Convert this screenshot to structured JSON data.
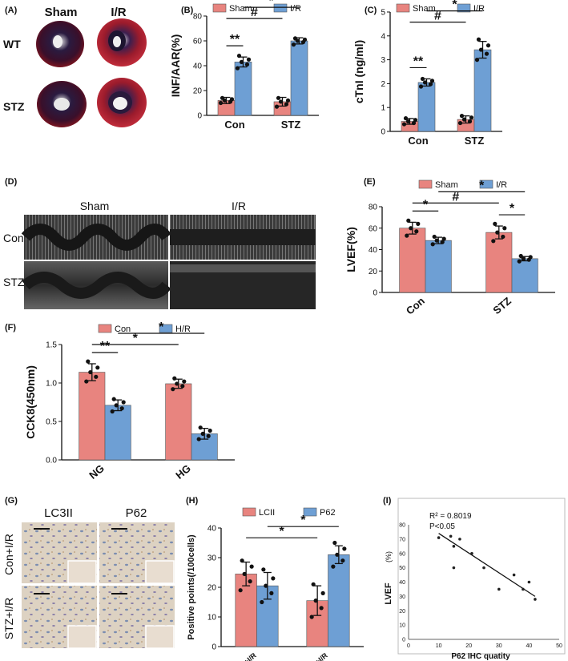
{
  "colors": {
    "red": "#e8847f",
    "blue": "#6e9fd4",
    "axis": "#111111"
  },
  "panels": {
    "A": {
      "label": "(A)",
      "col_headers": [
        "Sham",
        "I/R"
      ],
      "row_headers": [
        "WT",
        "STZ"
      ]
    },
    "D": {
      "label": "(D)",
      "col_headers": [
        "Sham",
        "I/R"
      ],
      "row_headers": [
        "Con",
        "STZ"
      ]
    },
    "G": {
      "label": "(G)",
      "col_headers": [
        "LC3II",
        "P62"
      ],
      "row_headers": [
        "Con+I/R",
        "STZ+I/R"
      ]
    }
  },
  "chart_data": [
    {
      "panel": "(B)",
      "type": "bar",
      "categories": [
        "Con",
        "STZ"
      ],
      "series": [
        {
          "name": "Sham",
          "values": [
            12,
            11
          ],
          "errors": [
            2.5,
            3.5
          ],
          "points": [
            [
              10,
              11,
              12,
              13,
              14
            ],
            [
              7,
              9,
              11,
              12,
              14
            ]
          ]
        },
        {
          "name": "I/R",
          "values": [
            43,
            60
          ],
          "errors": [
            4,
            2.5
          ],
          "points": [
            [
              38,
              41,
              43,
              45,
              48
            ],
            [
              57,
              59,
              60,
              61,
              62
            ]
          ]
        }
      ],
      "ylabel": "INF/AAR(%)",
      "ylim": [
        0,
        80
      ],
      "yticks": [
        0,
        20,
        40,
        60,
        80
      ],
      "legend": "top",
      "annotations": [
        {
          "text": "**",
          "from": [
            0,
            0
          ],
          "to": [
            0,
            1
          ]
        },
        {
          "text": "#",
          "from": [
            0,
            0
          ],
          "to": [
            1,
            0
          ]
        },
        {
          "text": "*",
          "from": [
            0,
            1
          ],
          "to": [
            1,
            1
          ]
        }
      ]
    },
    {
      "panel": "(C)",
      "type": "bar",
      "categories": [
        "Con",
        "STZ"
      ],
      "series": [
        {
          "name": "Sham",
          "values": [
            0.42,
            0.5
          ],
          "errors": [
            0.12,
            0.15
          ],
          "points": [
            [
              0.3,
              0.35,
              0.42,
              0.48,
              0.55
            ],
            [
              0.35,
              0.42,
              0.5,
              0.58,
              0.65
            ]
          ]
        },
        {
          "name": "I/R",
          "values": [
            2.05,
            3.42
          ],
          "errors": [
            0.15,
            0.35
          ],
          "points": [
            [
              1.88,
              1.98,
              2.05,
              2.12,
              2.2
            ],
            [
              3.0,
              3.25,
              3.42,
              3.6,
              3.85
            ]
          ]
        }
      ],
      "ylabel": "cTnI (ng/ml)",
      "ylim": [
        0,
        5
      ],
      "yticks": [
        0,
        1,
        2,
        3,
        4,
        5
      ],
      "legend": "top",
      "annotations": [
        {
          "text": "**",
          "from": [
            0,
            0
          ],
          "to": [
            0,
            1
          ]
        },
        {
          "text": "#",
          "from": [
            0,
            0
          ],
          "to": [
            1,
            0
          ]
        },
        {
          "text": "*",
          "from": [
            0,
            1
          ],
          "to": [
            1,
            1
          ]
        }
      ]
    },
    {
      "panel": "(E)",
      "type": "bar",
      "categories": [
        "Con",
        "STZ"
      ],
      "series": [
        {
          "name": "Sham",
          "values": [
            60,
            56
          ],
          "errors": [
            5.5,
            6
          ],
          "points": [
            [
              53,
              57,
              60,
              64,
              67
            ],
            [
              48,
              52,
              56,
              60,
              64
            ]
          ]
        },
        {
          "name": "I/R",
          "values": [
            48.5,
            31.5
          ],
          "errors": [
            3,
            2
          ],
          "points": [
            [
              45,
              47,
              48.5,
              50,
              52
            ],
            [
              29,
              30.5,
              31.5,
              33,
              34
            ]
          ]
        }
      ],
      "ylabel": "LVEF(%)",
      "ylim": [
        0,
        80
      ],
      "yticks": [
        0,
        20,
        40,
        60,
        80
      ],
      "legend": "top",
      "annotations": [
        {
          "text": "*",
          "from": [
            0,
            0
          ],
          "to": [
            0,
            1
          ]
        },
        {
          "text": "#",
          "from": [
            0,
            0
          ],
          "to": [
            1,
            0
          ]
        },
        {
          "text": "*",
          "from": [
            0,
            1
          ],
          "to": [
            1,
            1
          ]
        },
        {
          "text": "*",
          "from": [
            1,
            0
          ],
          "to": [
            1,
            1
          ]
        }
      ]
    },
    {
      "panel": "(F)",
      "type": "bar",
      "categories": [
        "NG",
        "HG"
      ],
      "series": [
        {
          "name": "Con",
          "values": [
            1.14,
            0.99
          ],
          "errors": [
            0.11,
            0.06
          ],
          "points": [
            [
              1.02,
              1.08,
              1.14,
              1.2,
              1.28
            ],
            [
              0.92,
              0.96,
              0.99,
              1.02,
              1.06
            ]
          ]
        },
        {
          "name": "H/R",
          "values": [
            0.71,
            0.34
          ],
          "errors": [
            0.07,
            0.07
          ],
          "points": [
            [
              0.63,
              0.67,
              0.71,
              0.75,
              0.79
            ],
            [
              0.27,
              0.31,
              0.34,
              0.38,
              0.42
            ]
          ]
        }
      ],
      "ylabel": "CCK8(450nm)",
      "ylim": [
        0,
        1.5
      ],
      "yticks": [
        0.0,
        0.5,
        1.0,
        1.5
      ],
      "legend": "top",
      "annotations": [
        {
          "text": "**",
          "from": [
            0,
            0
          ],
          "to": [
            0,
            1
          ]
        },
        {
          "text": "*",
          "from": [
            0,
            0
          ],
          "to": [
            1,
            0
          ]
        },
        {
          "text": "*",
          "from": [
            0,
            1
          ],
          "to": [
            1,
            1
          ]
        }
      ]
    },
    {
      "panel": "(H)",
      "type": "bar",
      "categories": [
        "WT+I/R",
        "STZ+I/R"
      ],
      "series": [
        {
          "name": "LCII",
          "values": [
            24.5,
            15.5
          ],
          "errors": [
            4,
            5
          ],
          "points": [
            [
              19,
              22,
              24.5,
              27,
              29
            ],
            [
              10,
              13,
              15.5,
              18,
              21
            ]
          ]
        },
        {
          "name": "P62",
          "values": [
            20.5,
            31
          ],
          "errors": [
            4.5,
            3
          ],
          "points": [
            [
              15,
              18,
              20.5,
              23,
              26
            ],
            [
              27,
              29,
              31,
              33,
              35
            ]
          ]
        }
      ],
      "ylabel": "Positive points(/100cells)",
      "ylim": [
        0,
        40
      ],
      "yticks": [
        0,
        10,
        20,
        30,
        40
      ],
      "legend": "top",
      "annotations": [
        {
          "text": "*",
          "from": [
            0,
            0
          ],
          "to": [
            1,
            0
          ]
        },
        {
          "text": "*",
          "from": [
            0,
            1
          ],
          "to": [
            1,
            1
          ]
        }
      ]
    },
    {
      "panel": "(I)",
      "type": "scatter",
      "x": [
        10,
        14,
        15,
        15,
        17,
        21,
        25,
        30,
        35,
        38,
        40,
        42
      ],
      "y": [
        71,
        72,
        65,
        50,
        70,
        60,
        50,
        35,
        45,
        35,
        40,
        28
      ],
      "trendline": {
        "x": [
          10,
          42
        ],
        "y": [
          74,
          30
        ]
      },
      "xlabel": "P62 IHC quatity",
      "ylabel": "LVEF",
      "ylabel_unit": "(%)",
      "xlim": [
        0,
        50
      ],
      "ylim": [
        0,
        80
      ],
      "xticks": [
        0,
        10,
        20,
        30,
        40,
        50
      ],
      "yticks": [
        0,
        10,
        20,
        30,
        40,
        50,
        60,
        70,
        80
      ],
      "stats": [
        "R² = 0.8019",
        "P<0.05"
      ]
    }
  ]
}
